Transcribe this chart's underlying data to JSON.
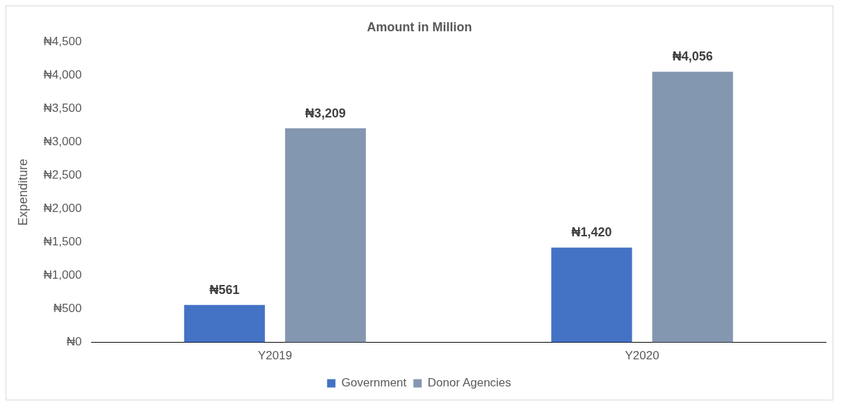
{
  "chart_data": {
    "type": "bar",
    "title": "Amount in Million",
    "ylabel": "Expenditure",
    "categories": [
      "Y2019",
      "Y2020"
    ],
    "series": [
      {
        "name": "Government",
        "color": "#4472c4",
        "values": [
          561,
          1420
        ],
        "value_labels": [
          "₦561",
          "₦1,420"
        ]
      },
      {
        "name": "Donor Agencies",
        "color": "#8497b0",
        "values": [
          3209,
          4056
        ],
        "value_labels": [
          "₦3,209",
          "₦4,056"
        ]
      }
    ],
    "ylim": [
      0,
      4500
    ],
    "yticks": [
      {
        "value": 0,
        "label": "₦0"
      },
      {
        "value": 500,
        "label": "₦500"
      },
      {
        "value": 1000,
        "label": "₦1,000"
      },
      {
        "value": 1500,
        "label": "₦1,500"
      },
      {
        "value": 2000,
        "label": "₦2,000"
      },
      {
        "value": 2500,
        "label": "₦2,500"
      },
      {
        "value": 3000,
        "label": "₦3,000"
      },
      {
        "value": 3500,
        "label": "₦3,500"
      },
      {
        "value": 4000,
        "label": "₦4,000"
      },
      {
        "value": 4500,
        "label": "₦4,500"
      }
    ],
    "grid": false,
    "legend": "bottom"
  }
}
